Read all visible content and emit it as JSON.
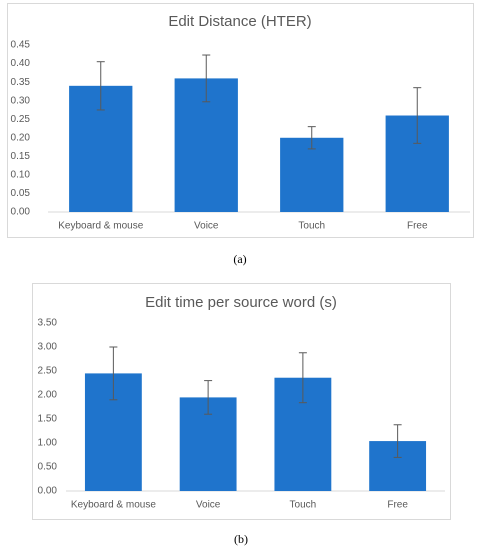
{
  "chart_data": [
    {
      "type": "bar",
      "title": "Edit Distance (HTER)",
      "caption": "(a)",
      "categories": [
        "Keyboard & mouse",
        "Voice",
        "Touch",
        "Free"
      ],
      "values": [
        0.34,
        0.36,
        0.2,
        0.26
      ],
      "errors": [
        0.065,
        0.063,
        0.03,
        0.075
      ],
      "color": "#1f74cc",
      "grid": false,
      "ylim": [
        0,
        0.45
      ],
      "yticks": [
        {
          "value": 0,
          "label": "0.00"
        },
        {
          "value": 0.05,
          "label": "0.05"
        },
        {
          "value": 0.1,
          "label": "0.10"
        },
        {
          "value": 0.15,
          "label": "0.15"
        },
        {
          "value": 0.2,
          "label": "0.20"
        },
        {
          "value": 0.25,
          "label": "0.25"
        },
        {
          "value": 0.3,
          "label": "0.30"
        },
        {
          "value": 0.35,
          "label": "0.35"
        },
        {
          "value": 0.4,
          "label": "0.40"
        },
        {
          "value": 0.45,
          "label": "0.45"
        }
      ]
    },
    {
      "type": "bar",
      "title": "Edit time per source word (s)",
      "caption": "(b)",
      "categories": [
        "Keyboard & mouse",
        "Voice",
        "Touch",
        "Free"
      ],
      "values": [
        2.45,
        1.95,
        2.36,
        1.04
      ],
      "errors": [
        0.55,
        0.35,
        0.52,
        0.34
      ],
      "color": "#1f74cc",
      "grid": false,
      "ylim": [
        0,
        3.5
      ],
      "yticks": [
        {
          "value": 0,
          "label": "0.00"
        },
        {
          "value": 0.5,
          "label": "0.50"
        },
        {
          "value": 1,
          "label": "1.00"
        },
        {
          "value": 1.5,
          "label": "1.50"
        },
        {
          "value": 2,
          "label": "2.00"
        },
        {
          "value": 2.5,
          "label": "2.50"
        },
        {
          "value": 3,
          "label": "3.00"
        },
        {
          "value": 3.5,
          "label": "3.50"
        }
      ]
    }
  ]
}
